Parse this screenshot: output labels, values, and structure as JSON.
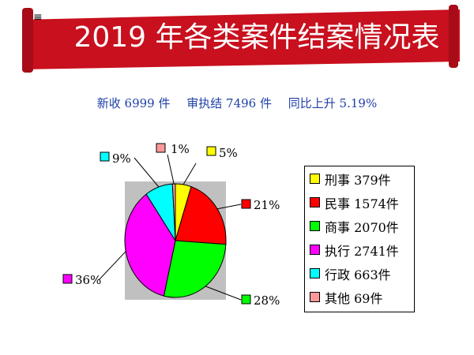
{
  "banner": {
    "mark": "≡",
    "title": "2019 年各类案件结案情况表",
    "color": "#c8101e"
  },
  "summary": {
    "received": "新收 6999 件",
    "concluded": "审执结 7496 件",
    "growth": "同比上升 5.19%"
  },
  "chart_data": {
    "type": "pie",
    "categories": [
      "刑事",
      "民事",
      "商事",
      "执行",
      "行政",
      "其他"
    ],
    "values": [
      379,
      1574,
      2070,
      2741,
      663,
      69
    ],
    "percent_labels": [
      "5%",
      "21%",
      "28%",
      "36%",
      "9%",
      "1%"
    ],
    "legend_labels": [
      "刑事 379件",
      "民事 1574件",
      "商事 2070件",
      "执行 2741件",
      "行政 663件",
      "其他 69件"
    ],
    "colors": [
      "#ffff00",
      "#ff0000",
      "#00ff00",
      "#ff00ff",
      "#00ffff",
      "#ff9999"
    ],
    "background": "#c0c0c0",
    "legend_position": "right"
  }
}
